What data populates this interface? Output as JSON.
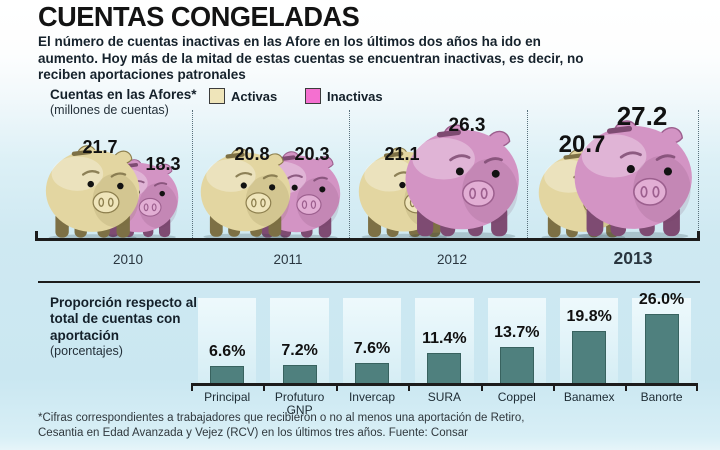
{
  "title": "CUENTAS CONGELADAS",
  "subtitle": "El número de cuentas inactivas en las Afore en los últimos dos años ha ido en aumento. Hoy más de la mitad de estas cuentas se encuentran inactivas, es decir, no reciben aportaciones patronales",
  "afores_chart": {
    "heading": "Cuentas en las Afores*",
    "subheading": "(millones de cuentas)",
    "legend": [
      {
        "label": "Activas",
        "color": "#efe5ba"
      },
      {
        "label": "Inactivas",
        "color": "#f470d0"
      }
    ],
    "groups": [
      {
        "year": "2010",
        "activas": "21.7",
        "inactivas": "18.3"
      },
      {
        "year": "2011",
        "activas": "20.8",
        "inactivas": "20.3"
      },
      {
        "year": "2012",
        "activas": "21.1",
        "inactivas": "26.3"
      },
      {
        "year": "2013",
        "activas": "20.7",
        "inactivas": "27.2"
      }
    ]
  },
  "proportion_chart": {
    "heading": "Proporción respecto al total de cuentas con aportación",
    "subheading": "(porcentajes)",
    "bars": [
      {
        "name": "Principal",
        "value": 6.6,
        "label": "6.6%"
      },
      {
        "name": "Profuturo GNP",
        "value": 7.2,
        "label": "7.2%"
      },
      {
        "name": "Invercap",
        "value": 7.6,
        "label": "7.6%"
      },
      {
        "name": "SURA",
        "value": 11.4,
        "label": "11.4%"
      },
      {
        "name": "Coppel",
        "value": 13.7,
        "label": "13.7%"
      },
      {
        "name": "Banamex",
        "value": 19.8,
        "label": "19.8%"
      },
      {
        "name": "Banorte",
        "value": 26.0,
        "label": "26.0%"
      }
    ]
  },
  "footnote": "*Cifras correspondientes a trabajadores que recibieron o no al menos una aportación de Retiro, Cesantia en Edad Avanzada y Vejez (RCV) en los últimos tres años. Fuente: Consar",
  "colors": {
    "activas_pig": "#e3d6a1",
    "inactivas_pig": "#d394c4",
    "bar_teal": "#4f807e",
    "background_blue": "#cfe9f2",
    "axis": "#1c1c1c"
  },
  "chart_data": [
    {
      "type": "bar",
      "style": "piggy-bank-pictogram",
      "title": "Cuentas en las Afores* (millones de cuentas)",
      "categories": [
        "2010",
        "2011",
        "2012",
        "2013"
      ],
      "series": [
        {
          "name": "Activas",
          "values": [
            21.7,
            20.8,
            21.1,
            20.7
          ]
        },
        {
          "name": "Inactivas",
          "values": [
            18.3,
            20.3,
            26.3,
            27.2
          ]
        }
      ],
      "legend_position": "top"
    },
    {
      "type": "bar",
      "title": "Proporción respecto al total de cuentas con aportación (porcentajes)",
      "categories": [
        "Principal",
        "Profuturo GNP",
        "Invercap",
        "SURA",
        "Coppel",
        "Banamex",
        "Banorte"
      ],
      "values": [
        6.6,
        7.2,
        7.6,
        11.4,
        13.7,
        19.8,
        26.0
      ],
      "xlabel": "",
      "ylabel": "",
      "ylim": [
        0,
        30
      ],
      "grid": false
    }
  ]
}
